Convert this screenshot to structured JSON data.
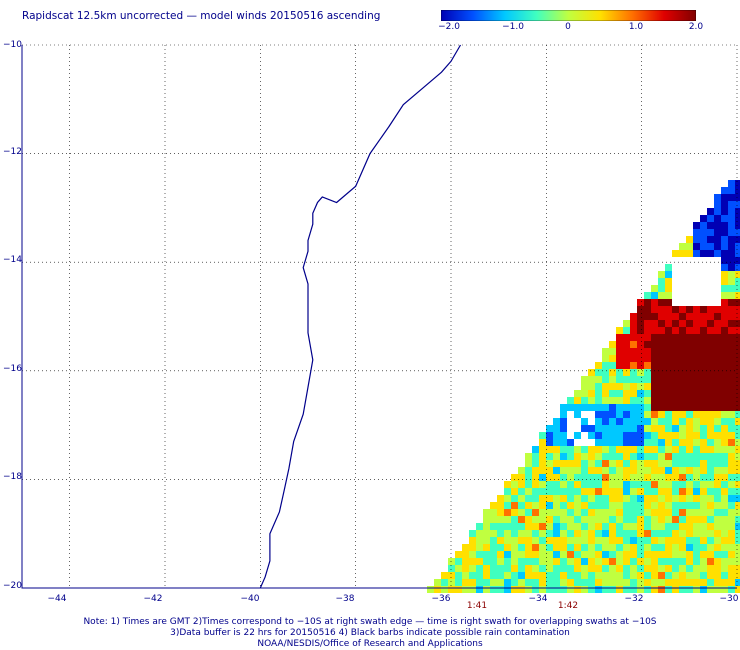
{
  "title": "Rapidscat 12.5km uncorrected — model winds 20150516 ascending",
  "colorbar": {
    "ticks": [
      "−2.0",
      "−1.0",
      "0",
      "1.0",
      "2.0"
    ],
    "tick_values": [
      -2.0,
      -1.0,
      0.0,
      1.0,
      2.0
    ],
    "range": [
      -2.0,
      2.0
    ],
    "colors": [
      "#0000b4",
      "#0050ff",
      "#00c8ff",
      "#40ffc0",
      "#c0ff40",
      "#ffe000",
      "#ff7000",
      "#e00000",
      "#800000"
    ]
  },
  "map": {
    "lon_range": [
      -45,
      -30
    ],
    "lat_range": [
      -20,
      -10
    ],
    "lat_labels": [
      "−10",
      "−12",
      "−14",
      "−16",
      "−18",
      "−20"
    ],
    "lat_values": [
      -10,
      -12,
      -14,
      -16,
      -18,
      -20
    ],
    "lon_labels": [
      "−44",
      "−42",
      "−40",
      "−38",
      "−36",
      "−34",
      "−32",
      "−30"
    ],
    "lon_values": [
      -44,
      -42,
      -40,
      -38,
      -36,
      -34,
      -32,
      -30
    ],
    "grid": true,
    "coastline_color": "#00008b",
    "coastline": [
      [
        -40.0,
        -20.0
      ],
      [
        -39.9,
        -19.8
      ],
      [
        -39.8,
        -19.5
      ],
      [
        -39.8,
        -19.0
      ],
      [
        -39.6,
        -18.6
      ],
      [
        -39.5,
        -18.2
      ],
      [
        -39.4,
        -17.8
      ],
      [
        -39.3,
        -17.3
      ],
      [
        -39.1,
        -16.8
      ],
      [
        -39.0,
        -16.3
      ],
      [
        -38.9,
        -15.8
      ],
      [
        -39.0,
        -15.3
      ],
      [
        -39.0,
        -14.8
      ],
      [
        -39.0,
        -14.4
      ],
      [
        -39.1,
        -14.1
      ],
      [
        -39.0,
        -13.8
      ],
      [
        -39.0,
        -13.6
      ],
      [
        -38.9,
        -13.3
      ],
      [
        -38.9,
        -13.1
      ],
      [
        -38.8,
        -12.9
      ],
      [
        -38.7,
        -12.8
      ],
      [
        -38.4,
        -12.9
      ],
      [
        -38.0,
        -12.6
      ],
      [
        -37.7,
        -12.0
      ],
      [
        -37.3,
        -11.5
      ],
      [
        -37.0,
        -11.1
      ],
      [
        -36.6,
        -10.8
      ],
      [
        -36.2,
        -10.5
      ],
      [
        -36.0,
        -10.3
      ],
      [
        -35.8,
        -10.0
      ]
    ]
  },
  "swath": {
    "time_labels": [
      "1:41",
      "1:42"
    ],
    "time_lon": [
      -33.8,
      -32.5
    ]
  },
  "notes": [
    "Note: 1) Times are GMT 2)Times correspond to −10S at right swath edge — time is right swath for overlapping swaths at −10S",
    "3)Data buffer is 22 hrs for 20150516 4) Black barbs indicate possible rain contamination",
    "NOAA/NESDIS/Office of Research and Applications"
  ]
}
